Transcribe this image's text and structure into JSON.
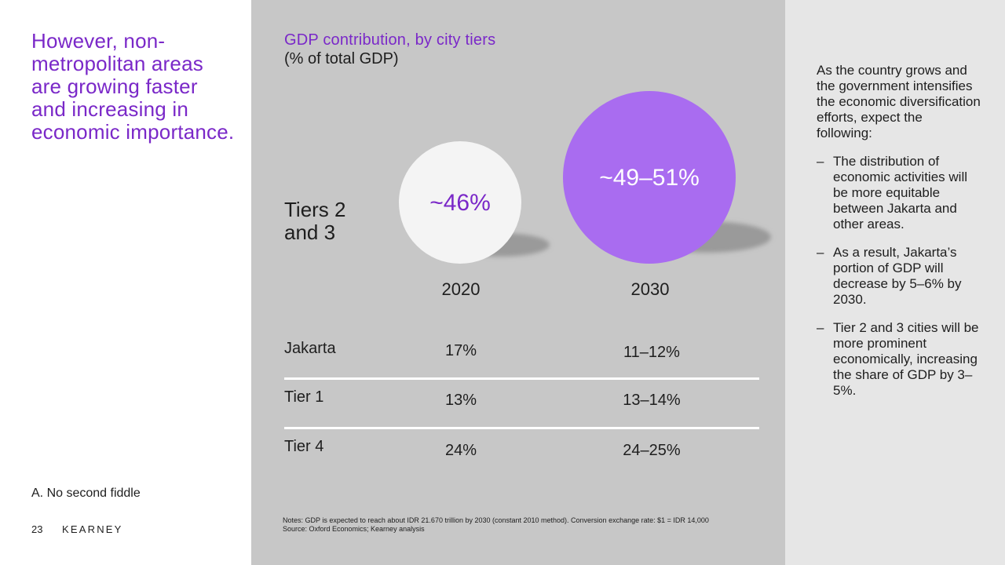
{
  "headline": "However, non-metropolitan areas are growing faster and increasing in economic importance.",
  "section_label": "A. No second fiddle",
  "footer": {
    "page_number": "23",
    "logo": "KEARNEY"
  },
  "chart_data": {
    "type": "bubble",
    "title": "GDP contribution, by city tiers",
    "subtitle": "(% of total GDP)",
    "bubble_row_label": "Tiers 2 and 3",
    "bubbles": [
      {
        "year": "2020",
        "label": "~46%",
        "value": 46,
        "color": "#f4f4f4",
        "text_color": "#7a28c8"
      },
      {
        "year": "2030",
        "label": "~49–51%",
        "value": 50,
        "color": "#a96cf0",
        "text_color": "#ffffff"
      }
    ],
    "years": [
      "2020",
      "2030"
    ],
    "table": [
      {
        "name": "Jakarta",
        "values": [
          "17%",
          "11–12%"
        ]
      },
      {
        "name": "Tier 1",
        "values": [
          "13%",
          "13–14%"
        ]
      },
      {
        "name": "Tier 4",
        "values": [
          "24%",
          "24–25%"
        ]
      }
    ]
  },
  "notes": [
    "Notes: GDP is expected to reach about IDR 21.670 trillion by 2030 (constant 2010 method). Conversion exchange rate: $1 = IDR 14,000",
    "Source: Oxford Economics; Kearney analysis"
  ],
  "sidebar": {
    "intro": "As the country grows and the government intensifies the economic diversification efforts, expect the following:",
    "dash": "–",
    "bullets": [
      "The distribution of economic activities will be more equitable between Jakarta and other areas.",
      "As a result, Jakarta’s portion of GDP will decrease by 5–6% by 2030.",
      "Tier 2 and 3 cities will be more prominent economically, increasing the share of GDP by 3–5%."
    ]
  }
}
